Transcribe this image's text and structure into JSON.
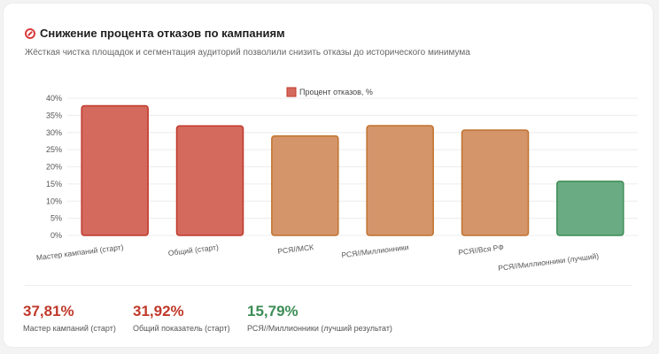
{
  "header": {
    "title": "Снижение процента отказов по кампаниям",
    "subtitle": "Жёсткая чистка площадок и сегментация аудиторий позволили снизить отказы до исторического минимума"
  },
  "chart_data": {
    "type": "bar",
    "title": "",
    "xlabel": "",
    "ylabel": "",
    "ylim": [
      0,
      40
    ],
    "yticks": [
      "0%",
      "5%",
      "10%",
      "15%",
      "20%",
      "25%",
      "30%",
      "35%",
      "40%"
    ],
    "legend": {
      "position": "top-center"
    },
    "categories": [
      "Мастер кампаний (старт)",
      "Общий (старт)",
      "РСЯ//МСК",
      "РСЯ//Миллионники",
      "РСЯ//Вся РФ",
      "РСЯ//Миллионники (лучший)"
    ],
    "series": [
      {
        "name": "Процент отказов, %",
        "values": [
          37.81,
          31.92,
          29.0,
          32.0,
          30.7,
          15.79
        ]
      }
    ],
    "bar_colors": [
      "#d4695e",
      "#d4695e",
      "#d4956b",
      "#d4956b",
      "#d4956b",
      "#6aab83"
    ],
    "bar_borders": [
      "#c0392b",
      "#c0392b",
      "#c0722d",
      "#c0722d",
      "#c0722d",
      "#3c8d56"
    ],
    "legend_color": "#d4695e",
    "legend_border": "#c0392b"
  },
  "kpis": [
    {
      "value": "37,81%",
      "label": "Мастер кампаний (старт)"
    },
    {
      "value": "31,92%",
      "label": "Общий показатель (старт)"
    },
    {
      "value": "15,79%",
      "label": "РСЯ//Миллионники (лучший результат)"
    }
  ]
}
